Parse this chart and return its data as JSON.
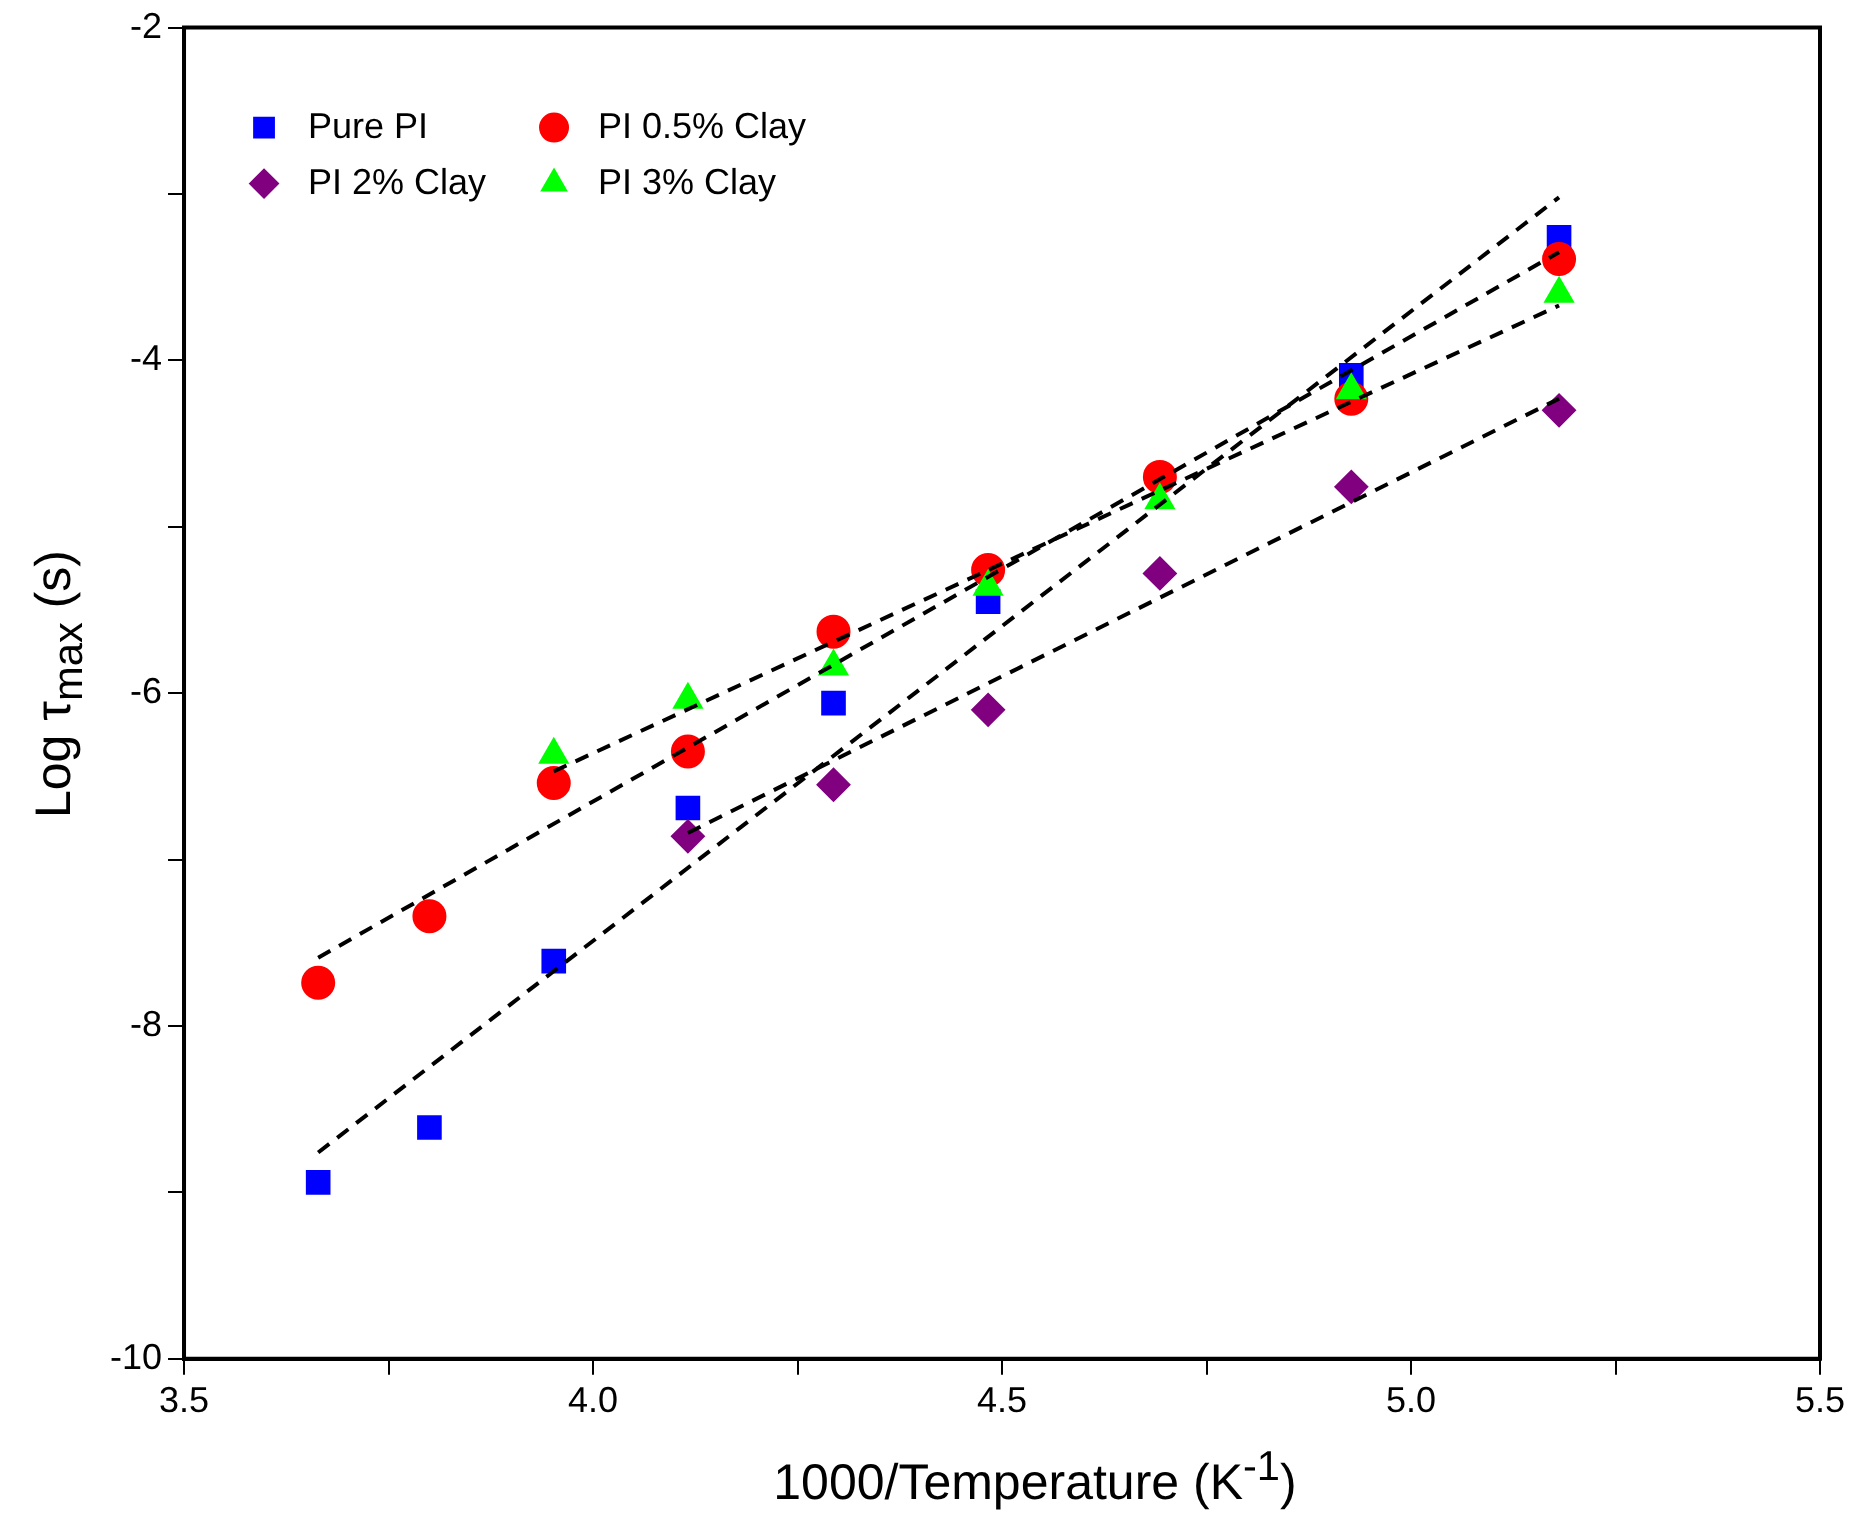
{
  "chart_data": {
    "type": "scatter",
    "xlabel": "1000/Temperature (K$^{-1}$)",
    "ylabel": "Log τ$_{max}$ (s)",
    "xlim": [
      3.5,
      5.5
    ],
    "xticks": [
      3.5,
      {
        "value": 3.75,
        "label": null
      },
      "4.0",
      {
        "value": 4.25,
        "label": null
      },
      4.5,
      {
        "value": 4.75,
        "label": null
      },
      "5.0",
      {
        "value": 5.25,
        "label": null
      },
      5.5
    ],
    "ylim": [
      -10,
      -2
    ],
    "yticks": [
      -10,
      {
        "value": -9,
        "label": null
      },
      -8,
      {
        "value": -7,
        "label": null
      },
      -6,
      {
        "value": -5,
        "label": null
      },
      -4,
      {
        "value": -3,
        "label": null
      },
      -2
    ],
    "legend": "top left",
    "grid": false,
    "series": [
      {
        "name": "Pure PI",
        "color": "#0000ff",
        "marker": "square",
        "x": [
          3.664,
          3.8,
          3.952,
          4.116,
          4.294,
          4.483,
          4.693,
          4.927,
          5.181
        ],
        "values": [
          -8.94,
          -8.61,
          -7.61,
          -6.69,
          -6.06,
          -5.45,
          null,
          -4.09,
          -3.26
        ]
      },
      {
        "name": "PI 0.5% Clay",
        "color": "#ff0000",
        "marker": "circle",
        "x": [
          3.664,
          3.8,
          3.952,
          4.116,
          4.294,
          4.483,
          4.693,
          4.927,
          5.181
        ],
        "values": [
          -7.74,
          -7.34,
          -6.54,
          -6.35,
          -5.63,
          -5.26,
          -4.7,
          -4.23,
          -3.39
        ]
      },
      {
        "name": "PI 2% Clay",
        "color": "#800080",
        "marker": "diamond",
        "x": [
          4.116,
          4.294,
          4.483,
          4.693,
          4.927,
          5.181
        ],
        "values": [
          -6.86,
          -6.55,
          -6.1,
          -5.28,
          -4.76,
          -4.3
        ]
      },
      {
        "name": "PI 3% Clay",
        "color": "#00ff00",
        "marker": "triangle",
        "x": [
          3.952,
          4.116,
          4.294,
          4.483,
          4.693,
          4.927,
          5.181
        ],
        "values": [
          -6.37,
          -6.04,
          -5.84,
          -5.36,
          -4.84,
          -4.18,
          -3.6
        ]
      },
      {
        "type": "line",
        "color": "#000000",
        "marker": "none",
        "line_style": "dashed",
        "x": [
          3.664,
          5.181
        ],
        "values": [
          -8.76,
          -3.02
        ]
      },
      {
        "type": "line",
        "color": "#000000",
        "marker": "none",
        "line_style": "dashed",
        "x": [
          3.664,
          5.181
        ],
        "values": [
          -7.59,
          -3.35
        ]
      },
      {
        "type": "line",
        "color": "#000000",
        "marker": "none",
        "line_style": "dashed",
        "x": [
          4.116,
          5.181
        ],
        "values": [
          -6.84,
          -4.23
        ]
      },
      {
        "type": "line",
        "color": "#000000",
        "marker": "none",
        "line_style": "dashed",
        "x": [
          3.952,
          5.181
        ],
        "values": [
          -6.47,
          -3.67
        ]
      }
    ]
  }
}
